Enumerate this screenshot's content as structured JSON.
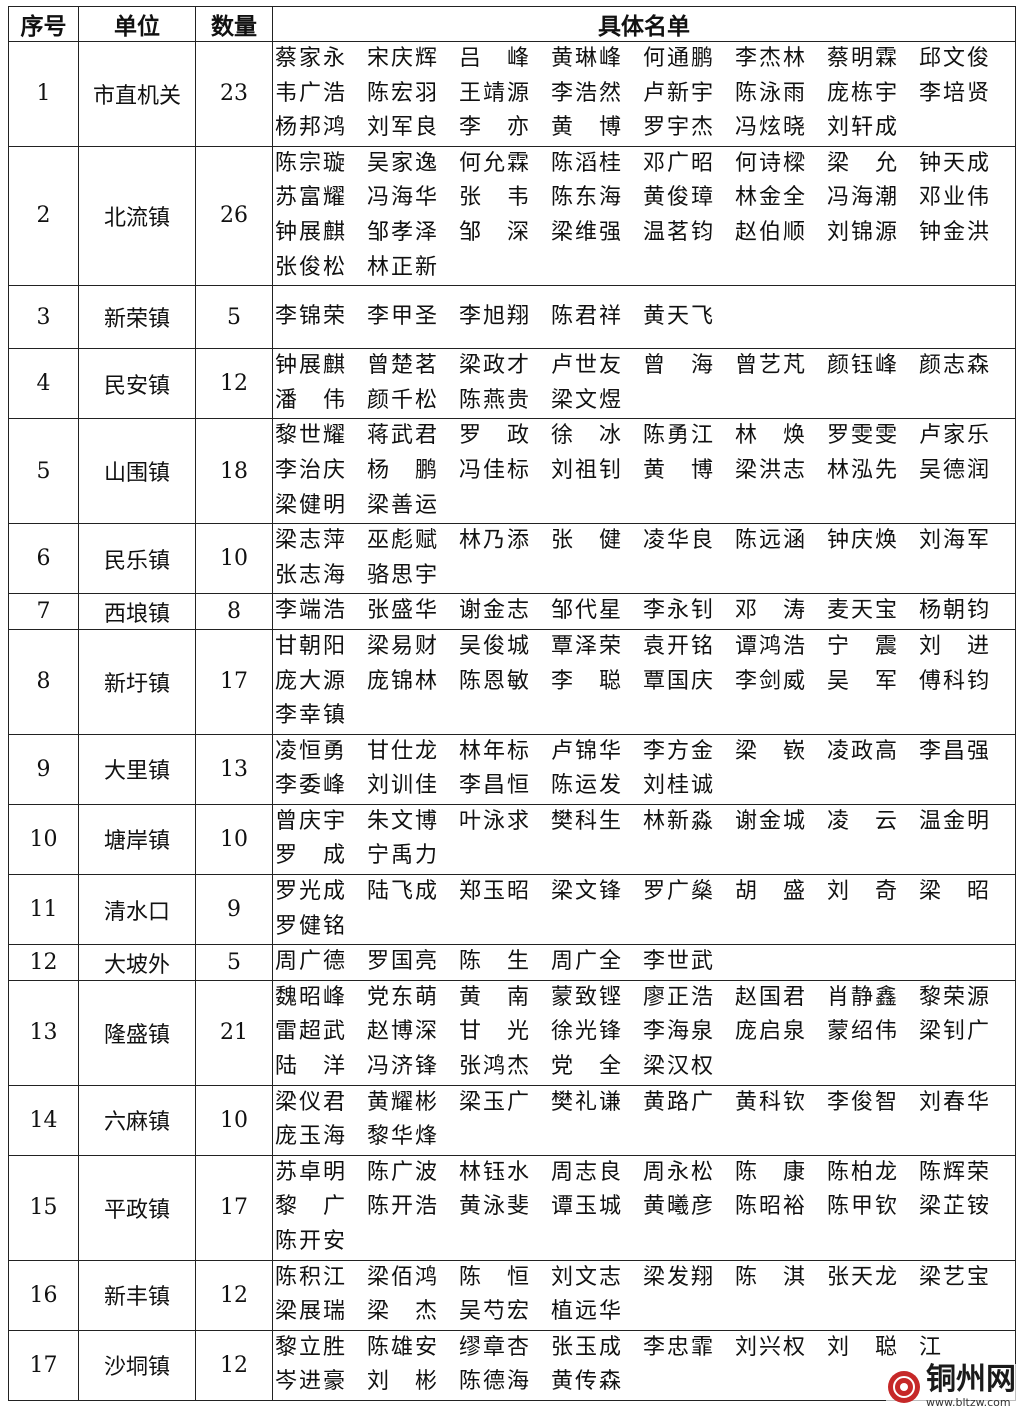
{
  "table": {
    "header": [
      "序号",
      "单位",
      "数量",
      "具体名单"
    ],
    "rows": [
      [
        1,
        "市直机关",
        23,
        [
          "蔡家永",
          "宋庆辉",
          "吕峰",
          "黄琳峰",
          "何通鹏",
          "李杰林",
          "蔡明霖",
          "邱文俊",
          "韦广浩",
          "陈宏羽",
          "王靖源",
          "李浩然",
          "卢新宇",
          "陈泳雨",
          "庞栋宇",
          "李培贤",
          "杨邦鸿",
          "刘军良",
          "李亦",
          "黄博",
          "罗宇杰",
          "冯炫晓",
          "刘轩成"
        ]
      ],
      [
        2,
        "北流镇",
        26,
        [
          "陈宗璇",
          "吴家逸",
          "何允霖",
          "陈滔桂",
          "邓广昭",
          "何诗樑",
          "梁允",
          "钟天成",
          "苏富耀",
          "冯海华",
          "张韦",
          "陈东海",
          "黄俊璋",
          "林金全",
          "冯海潮",
          "邓业伟",
          "钟展麒",
          "邹孝泽",
          "邹深",
          "梁维强",
          "温茗钧",
          "赵伯顺",
          "刘锦源",
          "钟金洪",
          "张俊松",
          "林正新"
        ]
      ],
      [
        3,
        "新荣镇",
        5,
        [
          "李锦荣",
          "李甲圣",
          "李旭翔",
          "陈君祥",
          "黄天飞"
        ]
      ],
      [
        4,
        "民安镇",
        12,
        [
          "钟展麒",
          "曾楚茗",
          "梁政才",
          "卢世友",
          "曾海",
          "曾艺芃",
          "颜钰峰",
          "颜志森",
          "潘伟",
          "颜千松",
          "陈燕贵",
          "梁文煜"
        ]
      ],
      [
        5,
        "山围镇",
        18,
        [
          "黎世耀",
          "蒋武君",
          "罗政",
          "徐冰",
          "陈勇江",
          "林焕",
          "罗雯雯",
          "卢家乐",
          "李治庆",
          "杨鹏",
          "冯佳标",
          "刘祖钊",
          "黄博",
          "梁洪志",
          "林泓先",
          "吴德润",
          "梁健明",
          "梁善运"
        ]
      ],
      [
        6,
        "民乐镇",
        10,
        [
          "梁志萍",
          "巫彪赋",
          "林乃添",
          "张健",
          "凌华良",
          "陈远涵",
          "钟庆焕",
          "刘海军",
          "张志海",
          "骆思宇"
        ]
      ],
      [
        7,
        "西埌镇",
        8,
        [
          "李端浩",
          "张盛华",
          "谢金志",
          "邹代星",
          "李永钊",
          "邓涛",
          "麦天宝",
          "杨朝钧"
        ]
      ],
      [
        8,
        "新圩镇",
        17,
        [
          "甘朝阳",
          "梁易财",
          "吴俊城",
          "覃泽荣",
          "袁开铭",
          "谭鸿浩",
          "宁震",
          "刘进",
          "庞大源",
          "庞锦林",
          "陈恩敏",
          "李聪",
          "覃国庆",
          "李剑威",
          "吴军",
          "傅科钧",
          "李幸镇"
        ]
      ],
      [
        9,
        "大里镇",
        13,
        [
          "凌恒勇",
          "甘仕龙",
          "林年标",
          "卢锦华",
          "李方金",
          "梁嵚",
          "凌政高",
          "李昌强",
          "李委峰",
          "刘训佳",
          "李昌恒",
          "陈运发",
          "刘桂诚"
        ]
      ],
      [
        10,
        "塘岸镇",
        10,
        [
          "曾庆宇",
          "朱文博",
          "叶泳求",
          "樊科生",
          "林新淼",
          "谢金城",
          "凌云",
          "温金明",
          "罗成",
          "宁禹力"
        ]
      ],
      [
        11,
        "清水口",
        9,
        [
          "罗光成",
          "陆飞成",
          "郑玉昭",
          "梁文锋",
          "罗广燊",
          "胡盛",
          "刘奇",
          "梁昭",
          "罗健铭"
        ]
      ],
      [
        12,
        "大坡外",
        5,
        [
          "周广德",
          "罗国亮",
          "陈生",
          "周广全",
          "李世武"
        ]
      ],
      [
        13,
        "隆盛镇",
        21,
        [
          "魏昭峰",
          "党东萌",
          "黄南",
          "蒙致铿",
          "廖正浩",
          "赵国君",
          "肖静鑫",
          "黎荣源",
          "雷超武",
          "赵博深",
          "甘光",
          "徐光锋",
          "李海泉",
          "庞启泉",
          "蒙绍伟",
          "梁钊广",
          "陆洋",
          "冯济锋",
          "张鸿杰",
          "党全",
          "梁汉权"
        ]
      ],
      [
        14,
        "六麻镇",
        10,
        [
          "梁仪君",
          "黄耀彬",
          "梁玉广",
          "樊礼谦",
          "黄路广",
          "黄科钦",
          "李俊智",
          "刘春华",
          "庞玉海",
          "黎华烽"
        ]
      ],
      [
        15,
        "平政镇",
        17,
        [
          "苏卓明",
          "陈广波",
          "林钰水",
          "周志良",
          "周永松",
          "陈康",
          "陈柏龙",
          "陈辉荣",
          "黎广",
          "陈开浩",
          "黄泳斐",
          "谭玉城",
          "黄曦彦",
          "陈昭裕",
          "陈甲钦",
          "梁芷铵",
          "陈开安"
        ]
      ],
      [
        16,
        "新丰镇",
        12,
        [
          "陈积江",
          "梁佰鸿",
          "陈恒",
          "刘文志",
          "梁发翔",
          "陈淇",
          "张天龙",
          "梁艺宝",
          "梁展瑞",
          "梁杰",
          "吴芍宏",
          "植远华"
        ]
      ],
      [
        17,
        "沙垌镇",
        12,
        [
          "黎立胜",
          "陈雄安",
          "缪章杏",
          "张玉成",
          "李忠霏",
          "刘兴权",
          "刘聪",
          "江",
          "岑进豪",
          "刘彬",
          "陈德海",
          "黄传森"
        ]
      ]
    ]
  },
  "watermark": {
    "title": "铜州网",
    "url": "www.bltzw.com"
  }
}
